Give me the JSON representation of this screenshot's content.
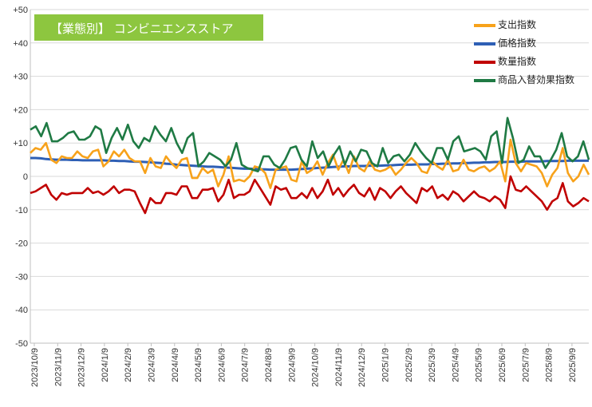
{
  "chart_data": {
    "type": "line",
    "title": "【業態別】 コンビニエンスストア",
    "xlabel": "",
    "ylabel": "",
    "ylim": [
      -50,
      50
    ],
    "y_ticks": [
      50,
      40,
      30,
      20,
      10,
      0,
      -10,
      -20,
      -30,
      -40,
      -50
    ],
    "y_tick_labels": [
      "+50",
      "+40",
      "+30",
      "+20",
      "+10",
      "0",
      "-10",
      "-20",
      "-30",
      "-40",
      "-50"
    ],
    "grid": true,
    "legend_position": "top-right",
    "x_tick_labels": [
      "2023/10/9",
      "2023/11/9",
      "2023/12/9",
      "2024/1/9",
      "2024/2/9",
      "2024/3/9",
      "2024/4/9",
      "2024/5/9",
      "2024/6/9",
      "2024/7/9",
      "2024/8/9",
      "2024/9/9",
      "2024/10/9",
      "2024/11/9",
      "2024/12/9",
      "2025/1/9",
      "2025/2/9",
      "2025/3/9",
      "2025/4/9",
      "2025/5/9",
      "2025/6/9",
      "2025/7/9",
      "2025/8/9",
      "2025/9/9"
    ],
    "series": [
      {
        "name": "支出指数",
        "color": "#f7a21b",
        "values": [
          7.0,
          8.5,
          8.0,
          10.0,
          5.0,
          4.0,
          6.0,
          5.5,
          5.5,
          7.5,
          6.0,
          5.5,
          7.5,
          8.0,
          3.0,
          4.5,
          7.5,
          6.0,
          8.0,
          5.5,
          4.5,
          4.5,
          1.0,
          5.5,
          3.0,
          2.5,
          6.0,
          4.0,
          2.5,
          5.0,
          5.5,
          -0.5,
          -0.5,
          2.5,
          1.0,
          2.0,
          -3.0,
          0.5,
          6.0,
          -1.5,
          -1.0,
          -1.5,
          0.0,
          3.0,
          2.5,
          1.0,
          -3.5,
          2.0,
          2.5,
          3.0,
          -1.0,
          -1.5,
          4.5,
          1.0,
          2.0,
          4.5,
          0.5,
          4.0,
          6.5,
          2.0,
          5.0,
          1.0,
          6.0,
          2.5,
          1.5,
          4.5,
          2.0,
          1.5,
          2.0,
          3.0,
          0.5,
          2.0,
          4.0,
          5.5,
          4.0,
          1.5,
          1.0,
          4.5,
          3.0,
          2.0,
          5.0,
          1.5,
          2.0,
          5.0,
          2.0,
          1.5,
          2.5,
          3.0,
          1.5,
          2.5,
          4.5,
          -1.5,
          11.0,
          4.0,
          1.5,
          4.0,
          3.5,
          3.0,
          1.0,
          -3.0,
          0.5,
          2.5,
          8.5,
          1.0,
          -1.5,
          0.0,
          3.5,
          0.5
        ]
      },
      {
        "name": "価格指数",
        "color": "#2e5fb5",
        "values": [
          5.5,
          5.5,
          5.4,
          5.2,
          5.1,
          5.0,
          5.0,
          5.0,
          4.9,
          4.9,
          4.8,
          4.8,
          4.8,
          4.8,
          4.8,
          4.7,
          4.7,
          4.6,
          4.6,
          4.5,
          4.4,
          4.4,
          4.3,
          4.2,
          4.1,
          4.0,
          3.8,
          3.7,
          3.5,
          3.4,
          3.3,
          3.2,
          3.1,
          3.0,
          2.9,
          2.9,
          2.8,
          2.7,
          2.6,
          2.5,
          2.4,
          2.3,
          2.3,
          2.2,
          2.1,
          2.1,
          2.0,
          2.0,
          2.0,
          2.0,
          2.0,
          2.1,
          2.2,
          2.3,
          2.4,
          2.5,
          2.6,
          2.7,
          2.8,
          2.9,
          3.0,
          3.0,
          3.1,
          3.1,
          3.1,
          3.2,
          3.2,
          3.2,
          3.3,
          3.3,
          3.4,
          3.5,
          3.5,
          3.5,
          3.6,
          3.6,
          3.6,
          3.7,
          3.7,
          3.8,
          3.8,
          3.9,
          3.9,
          4.0,
          4.0,
          4.1,
          4.1,
          4.2,
          4.2,
          4.3,
          4.3,
          4.3,
          4.4,
          4.4,
          4.4,
          4.5,
          4.5,
          4.5,
          4.5,
          4.6,
          4.6,
          4.6,
          4.6,
          4.7,
          4.7,
          4.7,
          4.7,
          4.7
        ]
      },
      {
        "name": "数量指数",
        "color": "#c00000",
        "values": [
          -5.0,
          -4.5,
          -3.5,
          -2.5,
          -5.5,
          -7.0,
          -5.0,
          -5.5,
          -5.0,
          -5.0,
          -5.0,
          -3.5,
          -5.0,
          -4.5,
          -5.5,
          -4.5,
          -3.0,
          -5.0,
          -4.0,
          -4.0,
          -4.5,
          -8.0,
          -11.0,
          -6.5,
          -8.0,
          -8.0,
          -5.0,
          -5.0,
          -5.5,
          -3.0,
          -3.0,
          -6.5,
          -6.5,
          -4.0,
          -4.0,
          -3.5,
          -7.5,
          -5.5,
          -1.0,
          -6.5,
          -5.5,
          -5.5,
          -4.5,
          -1.0,
          -3.5,
          -6.0,
          -8.5,
          -3.0,
          -4.0,
          -3.5,
          -6.5,
          -6.5,
          -5.0,
          -6.5,
          -3.5,
          -6.5,
          -4.5,
          -1.0,
          -5.5,
          -3.5,
          -6.0,
          -4.0,
          -2.5,
          -5.0,
          -6.0,
          -3.5,
          -7.0,
          -3.5,
          -4.5,
          -6.5,
          -4.5,
          -3.0,
          -5.0,
          -6.5,
          -8.0,
          -3.5,
          -4.5,
          -3.0,
          -6.5,
          -5.5,
          -7.0,
          -4.5,
          -5.5,
          -7.5,
          -6.0,
          -4.5,
          -6.0,
          -6.5,
          -7.5,
          -6.0,
          -7.0,
          -9.5,
          0.0,
          -4.0,
          -4.5,
          -3.0,
          -4.5,
          -6.0,
          -7.5,
          -10.0,
          -7.5,
          -6.5,
          -2.0,
          -7.5,
          -9.0,
          -8.0,
          -6.5,
          -7.5
        ]
      },
      {
        "name": "商品入替効果指数",
        "color": "#1f7a44",
        "values": [
          14.0,
          15.0,
          12.0,
          16.0,
          10.5,
          10.5,
          11.5,
          13.0,
          13.5,
          11.0,
          11.0,
          12.0,
          15.0,
          14.0,
          7.0,
          11.5,
          14.5,
          11.0,
          15.5,
          10.5,
          8.5,
          11.5,
          10.5,
          15.0,
          12.5,
          10.5,
          14.5,
          10.0,
          7.0,
          11.5,
          13.0,
          3.0,
          4.5,
          7.0,
          6.0,
          5.0,
          3.0,
          5.0,
          10.0,
          3.5,
          2.5,
          2.0,
          1.5,
          6.0,
          6.0,
          3.5,
          2.5,
          5.0,
          8.5,
          9.0,
          5.0,
          3.0,
          10.5,
          5.5,
          7.5,
          3.0,
          6.5,
          9.0,
          3.5,
          7.5,
          4.5,
          8.0,
          7.5,
          4.0,
          3.0,
          8.5,
          4.0,
          6.0,
          6.5,
          4.5,
          6.5,
          10.0,
          7.5,
          5.5,
          4.0,
          8.5,
          8.5,
          5.0,
          10.5,
          12.0,
          7.5,
          8.0,
          8.5,
          7.5,
          5.0,
          12.0,
          13.5,
          4.0,
          17.5,
          11.5,
          4.0,
          5.0,
          9.0,
          6.0,
          6.0,
          2.5,
          5.0,
          8.0,
          13.0,
          6.0,
          4.5,
          6.0,
          10.5,
          5.0
        ]
      }
    ]
  }
}
